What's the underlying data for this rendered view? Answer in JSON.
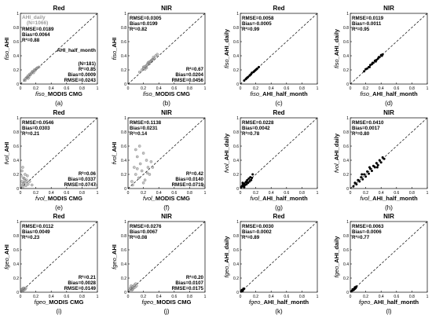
{
  "chart_data": [
    {
      "label": "(a)",
      "title": "Red",
      "type": "scatter",
      "xlabel_sub": "fiso_",
      "xlabel": "MODIS CMG",
      "ylabel_sub": "fiso_",
      "ylabel": "AHI",
      "xlim": [
        0,
        1
      ],
      "ylim": [
        0,
        1
      ],
      "xticks": [
        "0",
        "0.2",
        "0.4",
        "0.6",
        "0.8",
        "1"
      ],
      "yticks": [
        "0",
        "0.2",
        "0.4",
        "0.6",
        "0.8",
        "1"
      ],
      "stats_top": [
        "RMSE=0.0189",
        "Bias=0.0064",
        "R²=0.88"
      ],
      "stats_bottom": [
        "(N=181)",
        "R²=0.85",
        "Bias=0.0009",
        "RMSE=0.0243"
      ],
      "legend": [
        "AHI_daily",
        "(N=1066)",
        "AHI_half_month"
      ],
      "points": [
        [
          0.05,
          0.06
        ],
        [
          0.08,
          0.09
        ],
        [
          0.1,
          0.12
        ],
        [
          0.12,
          0.14
        ],
        [
          0.14,
          0.15
        ],
        [
          0.16,
          0.18
        ],
        [
          0.18,
          0.2
        ],
        [
          0.2,
          0.21
        ],
        [
          0.22,
          0.23
        ],
        [
          0.06,
          0.05
        ],
        [
          0.09,
          0.1
        ],
        [
          0.11,
          0.1
        ],
        [
          0.13,
          0.13
        ],
        [
          0.15,
          0.17
        ],
        [
          0.17,
          0.16
        ],
        [
          0.19,
          0.19
        ],
        [
          0.21,
          0.22
        ],
        [
          0.07,
          0.08
        ],
        [
          0.24,
          0.24
        ],
        [
          0.1,
          0.08
        ]
      ]
    },
    {
      "label": "(b)",
      "title": "NIR",
      "type": "scatter",
      "xlabel_sub": "fiso_",
      "xlabel": "MODIS CMG",
      "ylabel_sub": "fiso_",
      "ylabel": "AHI",
      "xlim": [
        0,
        1
      ],
      "ylim": [
        0,
        1
      ],
      "xticks": [
        "0",
        "0.2",
        "0.4",
        "0.6",
        "0.8",
        "1"
      ],
      "yticks": [
        "0",
        "0.2",
        "0.4",
        "0.6",
        "0.8",
        "1"
      ],
      "stats_top": [
        "RMSE=0.0305",
        "Bias=0.0199",
        "R²=0.82"
      ],
      "stats_bottom": [
        "R²=0.67",
        "Bias=0.0204",
        "RMSE=0.0456"
      ],
      "points": [
        [
          0.15,
          0.17
        ],
        [
          0.18,
          0.2
        ],
        [
          0.2,
          0.24
        ],
        [
          0.22,
          0.25
        ],
        [
          0.24,
          0.26
        ],
        [
          0.26,
          0.3
        ],
        [
          0.28,
          0.29
        ],
        [
          0.3,
          0.33
        ],
        [
          0.32,
          0.35
        ],
        [
          0.34,
          0.36
        ],
        [
          0.22,
          0.21
        ],
        [
          0.25,
          0.28
        ],
        [
          0.27,
          0.31
        ],
        [
          0.29,
          0.32
        ],
        [
          0.31,
          0.34
        ],
        [
          0.33,
          0.38
        ],
        [
          0.36,
          0.4
        ],
        [
          0.38,
          0.42
        ],
        [
          0.2,
          0.22
        ],
        [
          0.24,
          0.23
        ]
      ]
    },
    {
      "label": "(c)",
      "title": "Red",
      "type": "scatter",
      "xlabel_sub": "fiso_",
      "xlabel": "AHI_half_month",
      "ylabel_sub": "fiso_",
      "ylabel": "AHI_daily",
      "xlim": [
        0,
        1
      ],
      "ylim": [
        0,
        1
      ],
      "xticks": [
        "0",
        "0.2",
        "0.4",
        "0.6",
        "0.8",
        "1"
      ],
      "yticks": [
        "0",
        "0.2",
        "0.4",
        "0.6",
        "0.8",
        "1"
      ],
      "stats_top": [
        "RMSE=0.0058",
        "Bias=-0.0005",
        "R²=0.99"
      ],
      "stats_bottom": [],
      "points": [
        [
          0.05,
          0.05
        ],
        [
          0.07,
          0.07
        ],
        [
          0.09,
          0.09
        ],
        [
          0.1,
          0.1
        ],
        [
          0.12,
          0.12
        ],
        [
          0.14,
          0.14
        ],
        [
          0.15,
          0.16
        ],
        [
          0.17,
          0.17
        ],
        [
          0.19,
          0.19
        ],
        [
          0.2,
          0.2
        ],
        [
          0.22,
          0.22
        ],
        [
          0.24,
          0.24
        ],
        [
          0.08,
          0.08
        ],
        [
          0.13,
          0.13
        ],
        [
          0.18,
          0.18
        ],
        [
          0.21,
          0.21
        ]
      ]
    },
    {
      "label": "(d)",
      "title": "NIR",
      "type": "scatter",
      "xlabel_sub": "fiso_",
      "xlabel": "AHI_half_month",
      "ylabel_sub": "fiso_",
      "ylabel": "AHI_daily",
      "xlim": [
        0,
        1
      ],
      "ylim": [
        0,
        1
      ],
      "xticks": [
        "0",
        "0.2",
        "0.4",
        "0.6",
        "0.8",
        "1"
      ],
      "yticks": [
        "0",
        "0.2",
        "0.4",
        "0.6",
        "0.8",
        "1"
      ],
      "stats_top": [
        "RMSE=0.0119",
        "Bias=-0.0011",
        "R²=0.95"
      ],
      "stats_bottom": [],
      "points": [
        [
          0.18,
          0.18
        ],
        [
          0.2,
          0.21
        ],
        [
          0.22,
          0.22
        ],
        [
          0.24,
          0.24
        ],
        [
          0.26,
          0.27
        ],
        [
          0.28,
          0.28
        ],
        [
          0.3,
          0.3
        ],
        [
          0.32,
          0.33
        ],
        [
          0.34,
          0.34
        ],
        [
          0.36,
          0.36
        ],
        [
          0.38,
          0.38
        ],
        [
          0.4,
          0.41
        ],
        [
          0.42,
          0.42
        ],
        [
          0.25,
          0.24
        ],
        [
          0.29,
          0.3
        ],
        [
          0.33,
          0.32
        ],
        [
          0.37,
          0.38
        ],
        [
          0.41,
          0.4
        ]
      ]
    },
    {
      "label": "(e)",
      "title": "Red",
      "type": "scatter",
      "xlabel_sub": "fvol_",
      "xlabel": "MODIS CMG",
      "ylabel_sub": "fvol_",
      "ylabel": "AHI",
      "xlim": [
        0,
        1
      ],
      "ylim": [
        0,
        1
      ],
      "xticks": [
        "0",
        "0.2",
        "0.4",
        "0.6",
        "0.8",
        "1"
      ],
      "yticks": [
        "0",
        "0.2",
        "0.4",
        "0.6",
        "0.8",
        "1"
      ],
      "stats_top": [
        "RMSE=0.0546",
        "Bias=0.0303",
        "R²=0.21"
      ],
      "stats_bottom": [
        "R²=0.06",
        "Bias=0.0337",
        "RMSE=0.0747"
      ],
      "points": [
        [
          0.01,
          0.05
        ],
        [
          0.02,
          0.1
        ],
        [
          0.03,
          0.02
        ],
        [
          0.04,
          0.15
        ],
        [
          0.05,
          0.08
        ],
        [
          0.06,
          0.2
        ],
        [
          0.07,
          0.04
        ],
        [
          0.08,
          0.12
        ],
        [
          0.09,
          0.18
        ],
        [
          0.1,
          0.06
        ],
        [
          0.02,
          0.25
        ],
        [
          0.03,
          0.3
        ],
        [
          0.05,
          0.14
        ],
        [
          0.12,
          0.1
        ],
        [
          0.15,
          0.05
        ],
        [
          0.01,
          0.18
        ],
        [
          0.04,
          0.07
        ],
        [
          0.06,
          0.11
        ],
        [
          0.98,
          0.05
        ]
      ]
    },
    {
      "label": "(f)",
      "title": "NIR",
      "type": "scatter",
      "xlabel_sub": "fvol_",
      "xlabel": "MODIS CMG",
      "ylabel_sub": "fvol_",
      "ylabel": "AHI",
      "xlim": [
        0,
        1
      ],
      "ylim": [
        0,
        1
      ],
      "xticks": [
        "0",
        "0.2",
        "0.4",
        "0.6",
        "0.8",
        "1"
      ],
      "yticks": [
        "0",
        "0.2",
        "0.4",
        "0.6",
        "0.8",
        "1"
      ],
      "stats_top": [
        "RMSE=0.1138",
        "Bias=0.0231",
        "R²=0.14"
      ],
      "stats_bottom": [
        "R²=0.42",
        "Bias=0.0140",
        "RMSE=0.0719"
      ],
      "points": [
        [
          0.05,
          0.1
        ],
        [
          0.08,
          0.3
        ],
        [
          0.1,
          0.2
        ],
        [
          0.12,
          0.45
        ],
        [
          0.14,
          0.15
        ],
        [
          0.16,
          0.35
        ],
        [
          0.18,
          0.25
        ],
        [
          0.2,
          0.5
        ],
        [
          0.22,
          0.12
        ],
        [
          0.24,
          0.4
        ],
        [
          0.26,
          0.3
        ],
        [
          0.28,
          0.2
        ],
        [
          0.3,
          0.38
        ],
        [
          0.1,
          0.55
        ],
        [
          0.15,
          0.6
        ],
        [
          0.06,
          0.05
        ],
        [
          0.2,
          0.08
        ],
        [
          0.25,
          0.22
        ],
        [
          0.12,
          0.28
        ],
        [
          0.32,
          0.3
        ],
        [
          0.98,
          0.04
        ]
      ]
    },
    {
      "label": "(g)",
      "title": "Red",
      "type": "scatter",
      "xlabel_sub": "fvol_",
      "xlabel": "AHI_half_month",
      "ylabel_sub": "fvol_",
      "ylabel": "AHI_daily",
      "xlim": [
        0,
        1
      ],
      "ylim": [
        0,
        1
      ],
      "xticks": [
        "0",
        "0.2",
        "0.4",
        "0.6",
        "0.8",
        "1"
      ],
      "yticks": [
        "0",
        "0.2",
        "0.4",
        "0.6",
        "0.8",
        "1"
      ],
      "stats_top": [
        "RMSE=0.0228",
        "Bias=0.0042",
        "R²=0.78"
      ],
      "stats_bottom": [],
      "points": [
        [
          0.01,
          0.02
        ],
        [
          0.02,
          0.03
        ],
        [
          0.03,
          0.05
        ],
        [
          0.04,
          0.03
        ],
        [
          0.05,
          0.07
        ],
        [
          0.06,
          0.05
        ],
        [
          0.07,
          0.09
        ],
        [
          0.08,
          0.06
        ],
        [
          0.09,
          0.12
        ],
        [
          0.1,
          0.08
        ],
        [
          0.11,
          0.14
        ],
        [
          0.12,
          0.1
        ],
        [
          0.13,
          0.16
        ],
        [
          0.14,
          0.12
        ],
        [
          0.16,
          0.2
        ],
        [
          0.05,
          0.02
        ],
        [
          0.08,
          0.1
        ],
        [
          0.03,
          0.08
        ],
        [
          0.15,
          0.15
        ]
      ]
    },
    {
      "label": "(h)",
      "title": "NIR",
      "type": "scatter",
      "xlabel_sub": "fvol_",
      "xlabel": "AHI_half_month",
      "ylabel_sub": "fvol_",
      "ylabel": "AHI_daily",
      "xlim": [
        0,
        1
      ],
      "ylim": [
        0,
        1
      ],
      "xticks": [
        "0",
        "0.2",
        "0.4",
        "0.6",
        "0.8",
        "1"
      ],
      "yticks": [
        "0",
        "0.2",
        "0.4",
        "0.6",
        "0.8",
        "1"
      ],
      "stats_top": [
        "RMSE=0.0410",
        "Bias=0.0017",
        "R²=0.80"
      ],
      "stats_bottom": [],
      "points": [
        [
          0.04,
          0.03
        ],
        [
          0.06,
          0.08
        ],
        [
          0.08,
          0.06
        ],
        [
          0.1,
          0.12
        ],
        [
          0.12,
          0.1
        ],
        [
          0.14,
          0.16
        ],
        [
          0.16,
          0.13
        ],
        [
          0.18,
          0.2
        ],
        [
          0.2,
          0.17
        ],
        [
          0.22,
          0.24
        ],
        [
          0.24,
          0.21
        ],
        [
          0.26,
          0.28
        ],
        [
          0.28,
          0.25
        ],
        [
          0.3,
          0.32
        ],
        [
          0.32,
          0.3
        ],
        [
          0.34,
          0.36
        ],
        [
          0.36,
          0.33
        ],
        [
          0.38,
          0.4
        ],
        [
          0.4,
          0.37
        ],
        [
          0.42,
          0.44
        ],
        [
          0.44,
          0.42
        ],
        [
          0.15,
          0.2
        ],
        [
          0.25,
          0.3
        ],
        [
          0.35,
          0.3
        ]
      ]
    },
    {
      "label": "(i)",
      "title": "Red",
      "type": "scatter",
      "xlabel_sub": "fgeo_",
      "xlabel": "MODIS CMG",
      "ylabel_sub": "fgeo_",
      "ylabel": "AHI",
      "xlim": [
        0,
        1
      ],
      "ylim": [
        0,
        1
      ],
      "xticks": [
        "0",
        "0.2",
        "0.4",
        "0.6",
        "0.8",
        "1"
      ],
      "yticks": [
        "0",
        "0.2",
        "0.4",
        "0.6",
        "0.8",
        "1"
      ],
      "stats_top": [
        "RMSE=0.0112",
        "Bias=0.0049",
        "R²=0.23"
      ],
      "stats_bottom": [
        "R²=0.21",
        "Bias=0.0028",
        "RMSE=0.0149"
      ],
      "points": [
        [
          0.01,
          0.01
        ],
        [
          0.02,
          0.02
        ],
        [
          0.03,
          0.02
        ],
        [
          0.02,
          0.04
        ],
        [
          0.04,
          0.03
        ],
        [
          0.05,
          0.05
        ],
        [
          0.03,
          0.05
        ],
        [
          0.06,
          0.04
        ],
        [
          0.04,
          0.06
        ],
        [
          0.07,
          0.06
        ]
      ]
    },
    {
      "label": "(j)",
      "title": "NIR",
      "type": "scatter",
      "xlabel_sub": "fgeo_",
      "xlabel": "MODIS CMG",
      "ylabel_sub": "fgeo_",
      "ylabel": "AHI",
      "xlim": [
        0,
        1
      ],
      "ylim": [
        0,
        1
      ],
      "xticks": [
        "0",
        "0.2",
        "0.4",
        "0.6",
        "0.8",
        "1"
      ],
      "yticks": [
        "0",
        "0.2",
        "0.4",
        "0.6",
        "0.8",
        "1"
      ],
      "stats_top": [
        "RMSE=0.0276",
        "Bias=0.0067",
        "R²=0.08"
      ],
      "stats_bottom": [
        "R²=0.20",
        "Bias=0.0107",
        "RMSE=0.0175"
      ],
      "points": [
        [
          0.02,
          0.03
        ],
        [
          0.04,
          0.05
        ],
        [
          0.05,
          0.03
        ],
        [
          0.06,
          0.08
        ],
        [
          0.07,
          0.06
        ],
        [
          0.08,
          0.1
        ],
        [
          0.09,
          0.07
        ],
        [
          0.1,
          0.12
        ],
        [
          0.04,
          0.09
        ],
        [
          0.06,
          0.04
        ],
        [
          0.11,
          0.09
        ],
        [
          0.03,
          0.06
        ]
      ]
    },
    {
      "label": "(k)",
      "title": "Red",
      "type": "scatter",
      "xlabel_sub": "fgeo_",
      "xlabel": "AHI_half_month",
      "ylabel_sub": "fgeo_",
      "ylabel": "AHI_daily",
      "xlim": [
        0,
        1
      ],
      "ylim": [
        0,
        1
      ],
      "xticks": [
        "0",
        "0.2",
        "0.4",
        "0.6",
        "0.8",
        "1"
      ],
      "yticks": [
        "0",
        "0.2",
        "0.4",
        "0.6",
        "0.8",
        "1"
      ],
      "stats_top": [
        "RMSE=0.0030",
        "Bias=-0.0002",
        "R²=0.89"
      ],
      "stats_bottom": [],
      "points": [
        [
          0.01,
          0.01
        ],
        [
          0.02,
          0.02
        ],
        [
          0.03,
          0.03
        ],
        [
          0.02,
          0.03
        ],
        [
          0.04,
          0.04
        ],
        [
          0.05,
          0.05
        ],
        [
          0.03,
          0.02
        ],
        [
          0.04,
          0.05
        ]
      ]
    },
    {
      "label": "(l)",
      "title": "NIR",
      "type": "scatter",
      "xlabel_sub": "fgeo_",
      "xlabel": "AHI_half_month",
      "ylabel_sub": "fgeo_",
      "ylabel": "AHI_daily",
      "xlim": [
        0,
        1
      ],
      "ylim": [
        0,
        1
      ],
      "xticks": [
        "0",
        "0.2",
        "0.4",
        "0.6",
        "0.8",
        "1"
      ],
      "yticks": [
        "0",
        "0.2",
        "0.4",
        "0.6",
        "0.8",
        "1"
      ],
      "stats_top": [
        "RMSE=0.0063",
        "Bias=-0.0006",
        "R²=0.77"
      ],
      "stats_bottom": [],
      "points": [
        [
          0.02,
          0.02
        ],
        [
          0.03,
          0.04
        ],
        [
          0.04,
          0.03
        ],
        [
          0.05,
          0.05
        ],
        [
          0.06,
          0.07
        ],
        [
          0.07,
          0.06
        ],
        [
          0.08,
          0.08
        ],
        [
          0.05,
          0.04
        ],
        [
          0.06,
          0.05
        ]
      ]
    }
  ]
}
